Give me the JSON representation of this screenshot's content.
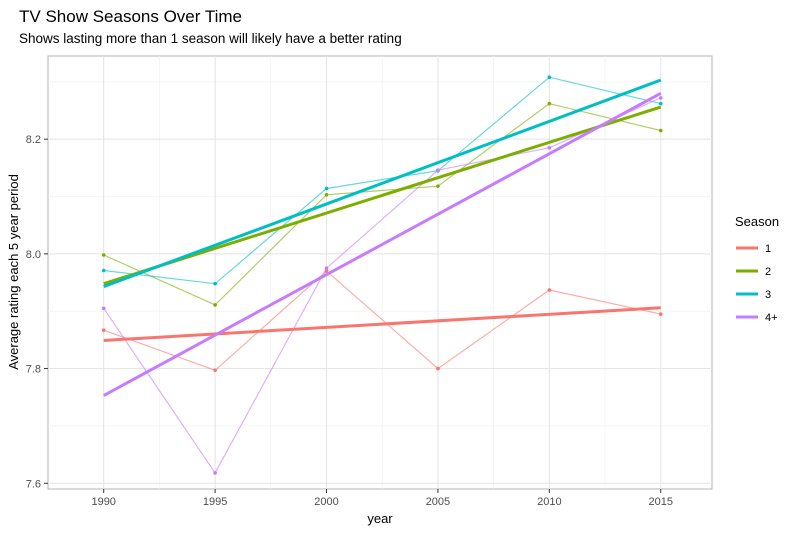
{
  "chart_data": {
    "type": "line",
    "title": "TV Show Seasons Over Time",
    "subtitle": "Shows lasting more than 1 season will likely have a better rating",
    "xlabel": "year",
    "ylabel": "Average rating each 5 year period",
    "x": [
      1990,
      1995,
      2000,
      2005,
      2010,
      2015
    ],
    "xlim": [
      1987.5,
      2017.3
    ],
    "ylim": [
      7.59,
      8.345
    ],
    "x_ticks": [
      1990,
      1995,
      2000,
      2005,
      2010,
      2015
    ],
    "y_ticks": [
      7.6,
      7.8,
      8.0,
      8.2
    ],
    "y_tick_labels": [
      "7.6",
      "7.8",
      "8.0",
      "8.2"
    ],
    "grid": true,
    "legend": {
      "title": "Season",
      "placement": "right"
    },
    "series": [
      {
        "name": "1",
        "color": "#F8766D",
        "values": [
          7.867,
          7.797,
          7.97,
          7.8,
          7.937,
          7.895
        ],
        "trend": [
          7.849,
          7.906
        ]
      },
      {
        "name": "2",
        "color": "#7CAE00",
        "values": [
          7.998,
          7.911,
          8.103,
          8.118,
          8.262,
          8.215
        ],
        "trend": [
          7.948,
          8.256
        ]
      },
      {
        "name": "3",
        "color": "#00BFC4",
        "values": [
          7.971,
          7.948,
          8.114,
          8.145,
          8.308,
          8.262
        ],
        "trend": [
          7.943,
          8.303
        ]
      },
      {
        "name": "4+",
        "color": "#C77CFF",
        "values": [
          7.905,
          7.618,
          7.975,
          8.146,
          8.185,
          8.272
        ],
        "trend": [
          7.753,
          8.28
        ]
      }
    ]
  }
}
